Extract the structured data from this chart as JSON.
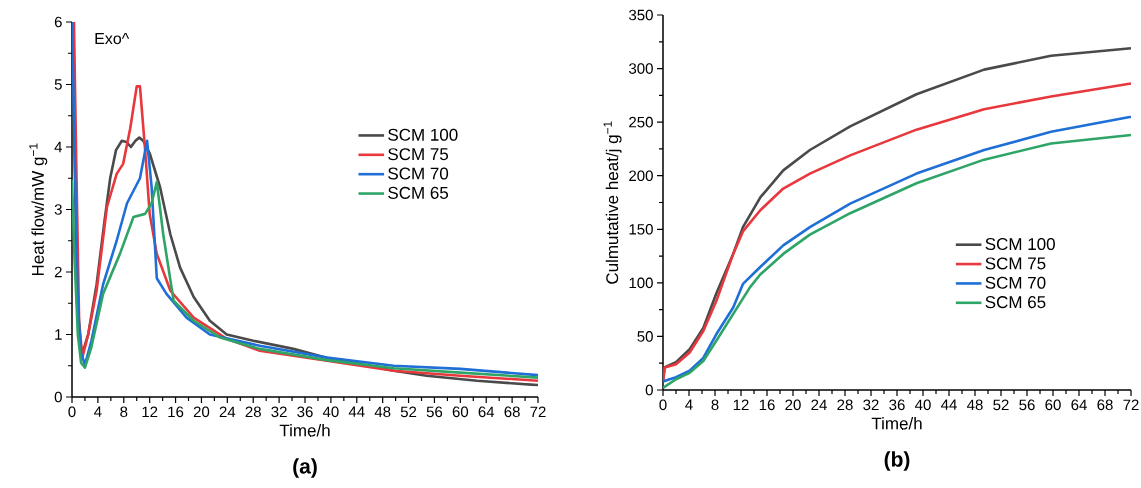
{
  "chart_data": [
    {
      "type": "line",
      "title": "(a)",
      "xlabel": "Time/h",
      "ylabel": "Heat flow/mW g$^{−1}$",
      "annotations": [
        "Exo^"
      ],
      "legend": "right",
      "xlim": [
        0,
        72
      ],
      "ylim": [
        0,
        6
      ],
      "xticks": [
        0,
        4,
        8,
        12,
        16,
        20,
        24,
        28,
        32,
        36,
        40,
        44,
        48,
        52,
        56,
        60,
        64,
        68,
        72
      ],
      "yticks": [
        0,
        1,
        2,
        3,
        4,
        5,
        6
      ],
      "series": [
        {
          "name": "SCM 100",
          "color": "#4a4a4a",
          "x": [
            0,
            0.3,
            0.8,
            1.5,
            2.5,
            3.8,
            5,
            5.9,
            6.8,
            7.7,
            8.4,
            9.1,
            9.8,
            10.4,
            11,
            12,
            13.6,
            15.2,
            16.7,
            18.8,
            21.3,
            23.9,
            28,
            34.2,
            39.9,
            44.5,
            49.7,
            54.8,
            62.6,
            72
          ],
          "values": [
            6,
            4.5,
            1.5,
            0.66,
            1.0,
            1.8,
            2.8,
            3.5,
            3.95,
            4.1,
            4.08,
            4.0,
            4.1,
            4.15,
            4.1,
            3.9,
            3.36,
            2.6,
            2.07,
            1.6,
            1.22,
            1.0,
            0.9,
            0.77,
            0.61,
            0.53,
            0.42,
            0.34,
            0.26,
            0.19
          ]
        },
        {
          "name": "SCM 75",
          "color": "#e8383d",
          "x": [
            0.3,
            0.7,
            1.1,
            1.6,
            2.5,
            3.8,
            5.4,
            6.9,
            7.9,
            9.0,
            10,
            10.5,
            11.3,
            12,
            13.1,
            15.2,
            18.8,
            23.9,
            29,
            39.4,
            49.7,
            60,
            72
          ],
          "values": [
            6,
            3.5,
            1.2,
            0.63,
            1.0,
            1.7,
            3.04,
            3.57,
            3.73,
            4.3,
            4.97,
            4.97,
            3.95,
            2.93,
            2.29,
            1.7,
            1.27,
            0.93,
            0.74,
            0.58,
            0.42,
            0.34,
            0.26
          ]
        },
        {
          "name": "SCM 70",
          "color": "#1f6fd6",
          "x": [
            0,
            0.4,
            0.9,
            1.4,
            2.0,
            3.0,
            4.8,
            6.9,
            8.5,
            10.5,
            11.6,
            12.3,
            13.1,
            14.6,
            17.7,
            21.3,
            29,
            39.4,
            49.7,
            60,
            72
          ],
          "values": [
            6,
            4.0,
            1.5,
            0.7,
            0.52,
            0.9,
            1.8,
            2.5,
            3.1,
            3.5,
            4.1,
            3.36,
            1.9,
            1.65,
            1.27,
            1.0,
            0.82,
            0.63,
            0.5,
            0.45,
            0.35
          ]
        },
        {
          "name": "SCM 65",
          "color": "#2ea567",
          "x": [
            0,
            0.4,
            0.9,
            1.4,
            2.0,
            3.0,
            4.8,
            7.4,
            9.5,
            11.3,
            12.3,
            13.1,
            14.1,
            15.7,
            18.8,
            22.9,
            29,
            39.4,
            49.7,
            60,
            72
          ],
          "values": [
            3.47,
            2.2,
            1.0,
            0.55,
            0.47,
            0.8,
            1.65,
            2.29,
            2.88,
            2.93,
            3.1,
            3.44,
            2.6,
            1.54,
            1.22,
            0.95,
            0.77,
            0.59,
            0.46,
            0.39,
            0.31
          ]
        }
      ]
    },
    {
      "type": "line",
      "title": "(b)",
      "xlabel": "Time/h",
      "ylabel": "Culmutative heat/j g$^{−1}$",
      "legend": "bottom right",
      "xlim": [
        0,
        72
      ],
      "ylim": [
        0,
        350
      ],
      "xticks": [
        0,
        4,
        8,
        12,
        16,
        20,
        24,
        28,
        32,
        36,
        40,
        44,
        48,
        52,
        56,
        60,
        64,
        68,
        72
      ],
      "yticks": [
        0,
        50,
        100,
        150,
        200,
        250,
        300,
        350
      ],
      "series": [
        {
          "name": "SCM 100",
          "color": "#4a4a4a",
          "x": [
            0,
            0.2,
            2,
            4.1,
            6.2,
            8.2,
            10.8,
            12.3,
            15,
            18.5,
            22.6,
            28.8,
            39,
            49.4,
            59.7,
            72
          ],
          "values": [
            8,
            21,
            26,
            38,
            58,
            90,
            127,
            152,
            180,
            205,
            224,
            246,
            276,
            299,
            312,
            319
          ]
        },
        {
          "name": "SCM 75",
          "color": "#e8383d",
          "x": [
            0,
            0.3,
            2,
            4.1,
            6.2,
            8.2,
            10.8,
            12.3,
            15,
            18.5,
            22.6,
            28.8,
            39,
            49.4,
            59.7,
            72
          ],
          "values": [
            8,
            21,
            24,
            35,
            55,
            83,
            127,
            148,
            168,
            188,
            202,
            219,
            243,
            262,
            274,
            286
          ]
        },
        {
          "name": "SCM 70",
          "color": "#1f6fd6",
          "x": [
            0,
            2,
            4.1,
            6.2,
            8.2,
            10.8,
            12.3,
            15,
            18.5,
            22.6,
            28.8,
            39,
            49.4,
            59.7,
            72
          ],
          "values": [
            8,
            12,
            18,
            30,
            52,
            77,
            99,
            115,
            135,
            152,
            174,
            202,
            224,
            241,
            255
          ]
        },
        {
          "name": "SCM 65",
          "color": "#2ea567",
          "x": [
            0,
            2,
            4.1,
            6.2,
            8.2,
            10.8,
            13.4,
            15,
            18.5,
            22.6,
            28.8,
            39,
            49.4,
            59.7,
            72
          ],
          "values": [
            2,
            10,
            16,
            27,
            46,
            71,
            96,
            108,
            127,
            145,
            165,
            193,
            215,
            230,
            238
          ]
        }
      ]
    }
  ]
}
